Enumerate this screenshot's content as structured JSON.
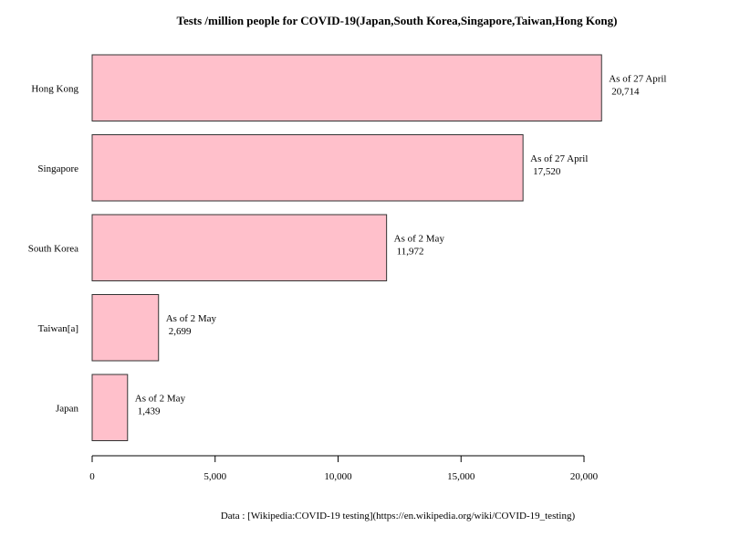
{
  "chart_data": {
    "type": "bar",
    "orientation": "horizontal",
    "title": "Tests /million people for COVID-19(Japan,South Korea,Singapore,Taiwan,Hong Kong)",
    "xlabel": "",
    "ylabel": "",
    "categories": [
      "Hong Kong",
      "Singapore",
      "South Korea",
      "Taiwan[a]",
      "Japan"
    ],
    "values": [
      20714,
      17520,
      11972,
      2699,
      1439
    ],
    "value_labels": [
      "20,714",
      "17,520",
      "11,972",
      "2,699",
      "1,439"
    ],
    "annotations": [
      "As of 27 April",
      "As of 27 April",
      "As of 2 May",
      "As of 2 May",
      "As of 2 May"
    ],
    "x_ticks": [
      0,
      5000,
      10000,
      15000,
      20000
    ],
    "x_tick_labels": [
      "0",
      "5,000",
      "10,000",
      "15,000",
      "20,000"
    ],
    "xlim": [
      0,
      20000
    ],
    "grid": false,
    "bar_color": "#ffc0cb",
    "bar_border_color": "#333333",
    "caption": "Data : [Wikipedia:COVID-19 testing](https://en.wikipedia.org/wiki/COVID-19_testing)"
  }
}
